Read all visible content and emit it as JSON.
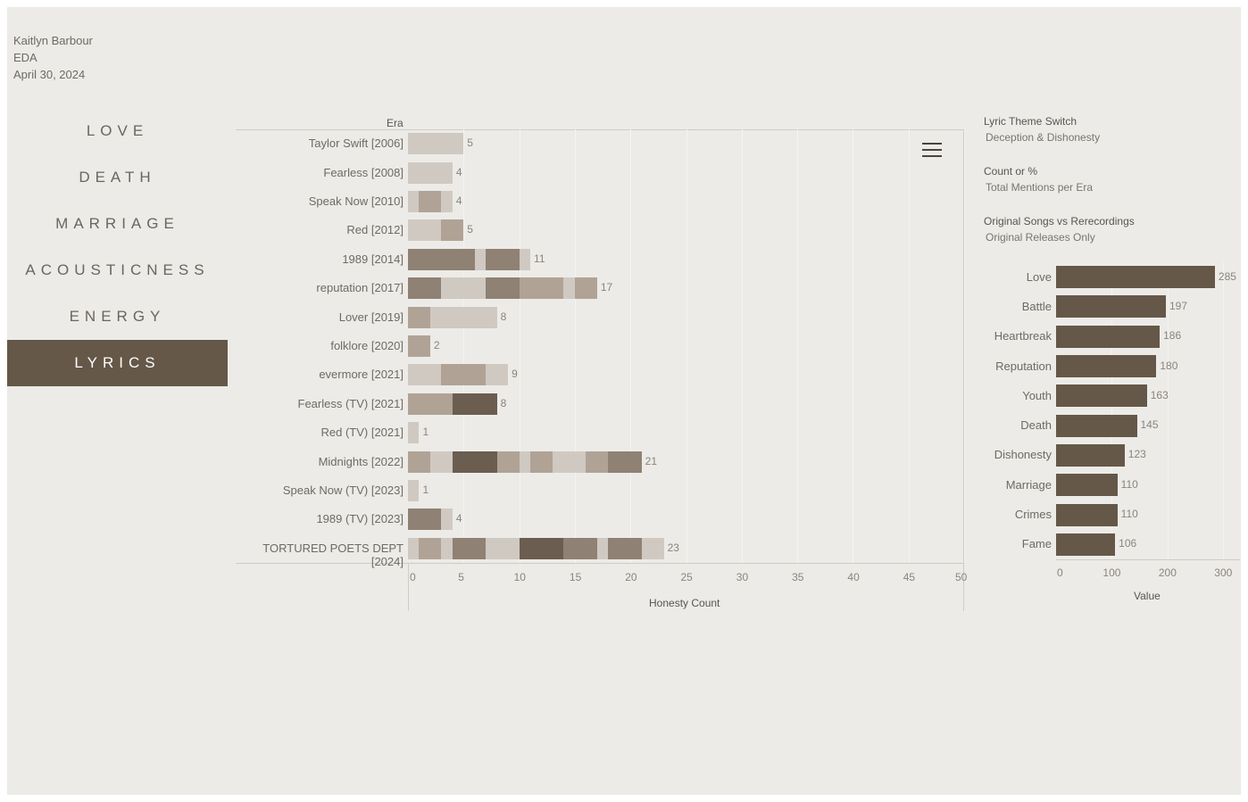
{
  "author": {
    "name": "Kaitlyn Barbour",
    "subject": "EDA",
    "date": "April 30, 2024"
  },
  "nav": [
    {
      "label": "LOVE",
      "active": false
    },
    {
      "label": "DEATH",
      "active": false
    },
    {
      "label": "MARRIAGE",
      "active": false
    },
    {
      "label": "ACOUSTICNESS",
      "active": false
    },
    {
      "label": "ENERGY",
      "active": false
    },
    {
      "label": "LYRICS",
      "active": true
    }
  ],
  "main_chart": {
    "row_header": "Era",
    "x_axis_title": "Honesty Count",
    "x_ticks": [
      "0",
      "5",
      "10",
      "15",
      "20",
      "25",
      "30",
      "35",
      "40",
      "45",
      "50"
    ]
  },
  "params": [
    {
      "label": "Lyric Theme Switch",
      "value": "Deception & Dishonesty"
    },
    {
      "label": "Count or %",
      "value": "Total Mentions per Era"
    },
    {
      "label": "Original Songs vs Rerecordings",
      "value": "Original Releases Only"
    }
  ],
  "side_chart": {
    "x_axis_title": "Value",
    "x_ticks": [
      "0",
      "100",
      "200",
      "300"
    ]
  },
  "colors": {
    "background": "#ecebe7",
    "accent": "#655848",
    "shade_1": "#d0c9c2",
    "shade_2": "#b0a396",
    "shade_3": "#8f8173",
    "shade_4": "#6b5d50"
  },
  "chart_data": [
    {
      "type": "bar",
      "orientation": "horizontal",
      "stacked": true,
      "xlabel": "Honesty Count",
      "ylabel": "Era",
      "xlim": [
        0,
        50
      ],
      "categories": [
        "Taylor Swift [2006]",
        "Fearless [2008]",
        "Speak Now [2010]",
        "Red [2012]",
        "1989 [2014]",
        "reputation [2017]",
        "Lover [2019]",
        "folklore [2020]",
        "evermore [2021]",
        "Fearless (TV) [2021]",
        "Red (TV) [2021]",
        "Midnights [2022]",
        "Speak Now (TV) [2023]",
        "1989 (TV) [2023]",
        "TORTURED POETS DEPT [2024]"
      ],
      "totals": [
        5,
        4,
        4,
        5,
        11,
        17,
        8,
        2,
        9,
        8,
        1,
        21,
        1,
        4,
        23
      ],
      "segments": [
        [
          [
            5,
            1
          ]
        ],
        [
          [
            4,
            1
          ]
        ],
        [
          [
            1,
            1
          ],
          [
            2,
            2
          ],
          [
            1,
            1
          ]
        ],
        [
          [
            3,
            1
          ],
          [
            2,
            2
          ]
        ],
        [
          [
            6,
            3
          ],
          [
            1,
            1
          ],
          [
            3,
            3
          ],
          [
            1,
            1
          ]
        ],
        [
          [
            3,
            3
          ],
          [
            4,
            1
          ],
          [
            3,
            3
          ],
          [
            4,
            2
          ],
          [
            1,
            1
          ],
          [
            2,
            2
          ]
        ],
        [
          [
            2,
            2
          ],
          [
            6,
            1
          ]
        ],
        [
          [
            2,
            2
          ]
        ],
        [
          [
            3,
            1
          ],
          [
            4,
            2
          ],
          [
            2,
            1
          ]
        ],
        [
          [
            4,
            2
          ],
          [
            4,
            4
          ]
        ],
        [
          [
            1,
            1
          ]
        ],
        [
          [
            2,
            2
          ],
          [
            2,
            1
          ],
          [
            4,
            4
          ],
          [
            2,
            2
          ],
          [
            1,
            1
          ],
          [
            2,
            2
          ],
          [
            3,
            1
          ],
          [
            2,
            2
          ],
          [
            3,
            3
          ]
        ],
        [
          [
            1,
            1
          ]
        ],
        [
          [
            3,
            3
          ],
          [
            1,
            1
          ]
        ],
        [
          [
            1,
            1
          ],
          [
            2,
            2
          ],
          [
            1,
            1
          ],
          [
            3,
            3
          ],
          [
            3,
            1
          ],
          [
            4,
            4
          ],
          [
            3,
            3
          ],
          [
            1,
            1
          ],
          [
            3,
            3
          ],
          [
            2,
            1
          ]
        ]
      ]
    },
    {
      "type": "bar",
      "orientation": "horizontal",
      "xlabel": "Value",
      "xlim": [
        0,
        330
      ],
      "categories": [
        "Love",
        "Battle",
        "Heartbreak",
        "Reputation",
        "Youth",
        "Death",
        "Dishonesty",
        "Marriage",
        "Crimes",
        "Fame"
      ],
      "values": [
        285,
        197,
        186,
        180,
        163,
        145,
        123,
        110,
        110,
        106
      ]
    }
  ]
}
